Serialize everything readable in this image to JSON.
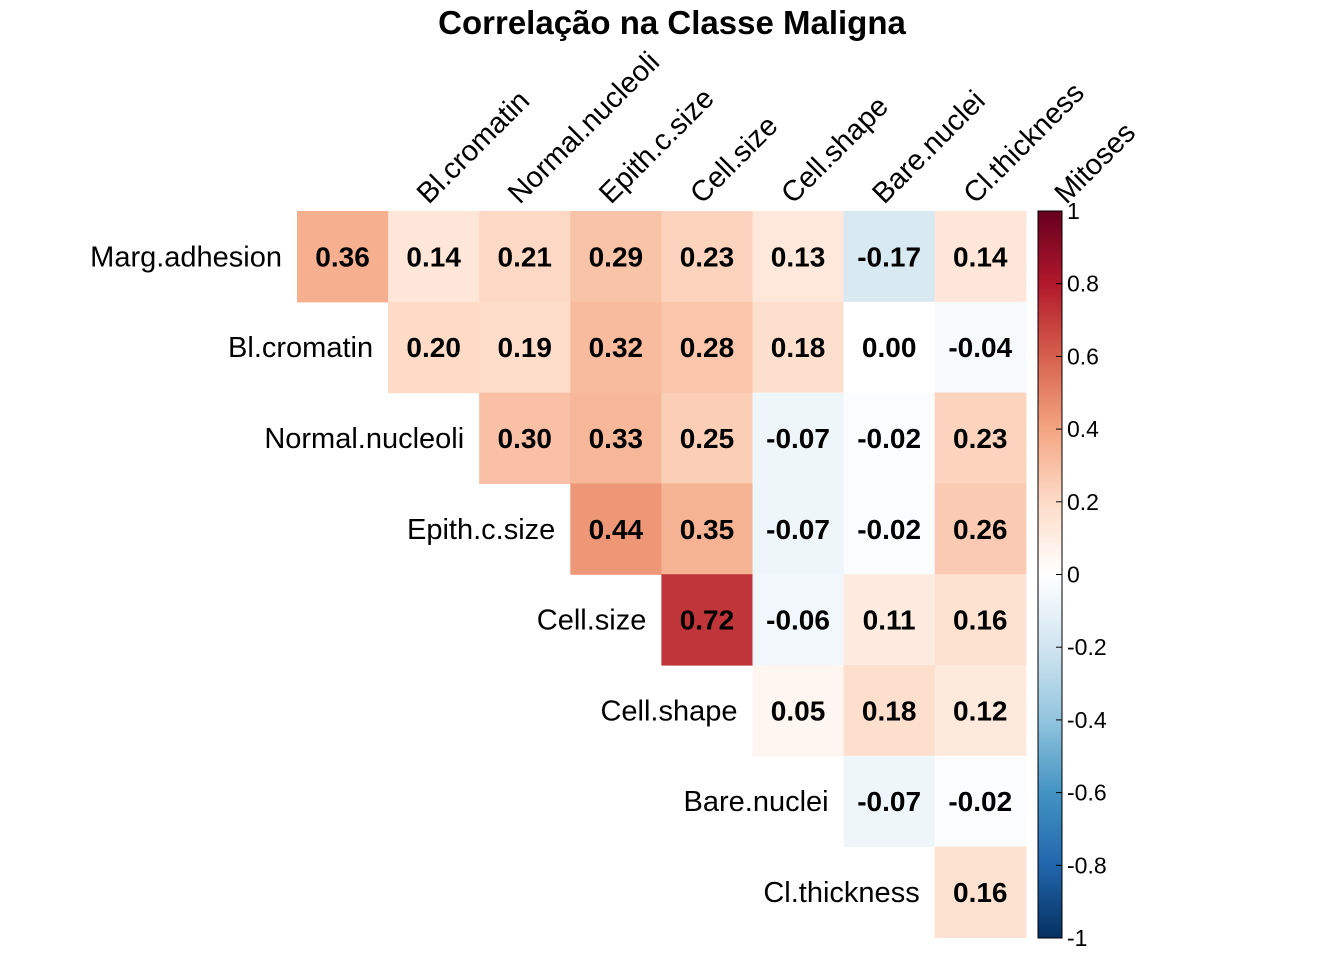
{
  "chart_data": {
    "type": "heatmap",
    "title": "Correlação na Classe Maligna",
    "rows": [
      "Marg.adhesion",
      "Bl.cromatin",
      "Normal.nucleoli",
      "Epith.c.size",
      "Cell.size",
      "Cell.shape",
      "Bare.nuclei",
      "Cl.thickness"
    ],
    "columns": [
      "Marg.adhesion",
      "Bl.cromatin",
      "Normal.nucleoli",
      "Epith.c.size",
      "Cell.size",
      "Cell.shape",
      "Bare.nuclei",
      "Cl.thickness",
      "Mitoses"
    ],
    "column_labels_shown": [
      "Bl.cromatin",
      "Normal.nucleoli",
      "Epith.c.size",
      "Cell.size",
      "Cell.shape",
      "Bare.nuclei",
      "Cl.thickness",
      "Mitoses"
    ],
    "layout": "upper-triangle-including-diagonal-column-offset",
    "values": [
      [
        0.36,
        0.14,
        0.21,
        0.29,
        0.23,
        0.13,
        -0.17,
        0.14
      ],
      [
        0.2,
        0.19,
        0.32,
        0.28,
        0.18,
        0.0,
        -0.04
      ],
      [
        0.3,
        0.33,
        0.25,
        -0.07,
        -0.02,
        0.23
      ],
      [
        0.44,
        0.35,
        -0.07,
        -0.02,
        0.26
      ],
      [
        0.72,
        -0.06,
        0.11,
        0.16
      ],
      [
        0.05,
        0.18,
        0.12
      ],
      [
        -0.07,
        -0.02
      ],
      [
        0.16
      ]
    ],
    "value_labels": [
      [
        "0.36",
        "0.14",
        "0.21",
        "0.29",
        "0.23",
        "0.13",
        "-0.17",
        "0.14"
      ],
      [
        "0.20",
        "0.19",
        "0.32",
        "0.28",
        "0.18",
        "0.00",
        "-0.04"
      ],
      [
        "0.30",
        "0.33",
        "0.25",
        "-0.07",
        "-0.02",
        "0.23"
      ],
      [
        "0.44",
        "0.35",
        "-0.07",
        "-0.02",
        "0.26"
      ],
      [
        "0.72",
        "-0.06",
        "0.11",
        "0.16"
      ],
      [
        "0.05",
        "0.18",
        "0.12"
      ],
      [
        "-0.07",
        "-0.02"
      ],
      [
        "0.16"
      ]
    ],
    "colorbar": {
      "range": [
        -1,
        1
      ],
      "ticks": [
        "1",
        "0.8",
        "0.6",
        "0.4",
        "0.2",
        "0",
        "-0.2",
        "-0.4",
        "-0.6",
        "-0.8",
        "-1"
      ],
      "tick_values": [
        1,
        0.8,
        0.6,
        0.4,
        0.2,
        0,
        -0.2,
        -0.4,
        -0.6,
        -0.8,
        -1
      ],
      "colors": [
        "#67001F",
        "#B2182B",
        "#D6604D",
        "#F4A582",
        "#FDDBC7",
        "#FFFFFF",
        "#D1E5F0",
        "#92C5DE",
        "#4393C3",
        "#2166AC",
        "#053061"
      ]
    }
  }
}
